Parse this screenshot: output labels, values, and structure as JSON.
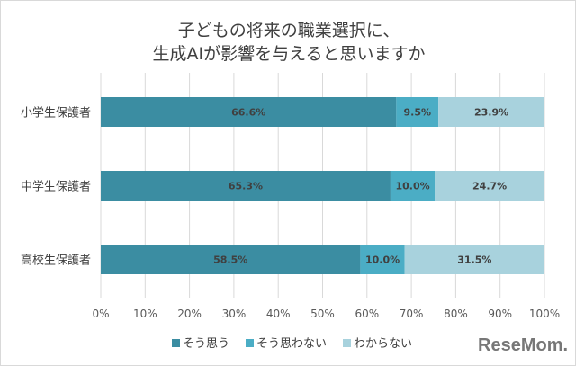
{
  "chart_data": {
    "type": "bar",
    "orientation": "horizontal",
    "stacked": "100%",
    "title": "子どもの将来の職業選択に、\n生成AIが影響を与えると思いますか",
    "title_lines": [
      "子どもの将来の職業選択に、",
      "生成AIが影響を与えると思いますか"
    ],
    "categories": [
      "小学生保護者",
      "中学生保護者",
      "高校生保護者"
    ],
    "series": [
      {
        "name": "そう思う",
        "values": [
          66.6,
          65.3,
          58.5
        ],
        "labels": [
          "66.6%",
          "65.3%",
          "58.5%"
        ],
        "color": "#3b8da2"
      },
      {
        "name": "そう思わない",
        "values": [
          9.5,
          10.0,
          10.0
        ],
        "labels": [
          "9.5%",
          "10.0%",
          "10.0%"
        ],
        "color": "#4badc5"
      },
      {
        "name": "わからない",
        "values": [
          23.9,
          24.7,
          31.5
        ],
        "labels": [
          "23.9%",
          "24.7%",
          "31.5%"
        ],
        "color": "#a8d2dd"
      }
    ],
    "xlim": [
      0,
      100
    ],
    "xticks": [
      "0%",
      "10%",
      "20%",
      "30%",
      "40%",
      "50%",
      "60%",
      "70%",
      "80%",
      "90%",
      "100%"
    ],
    "grid": true,
    "legend_position": "bottom"
  },
  "logo": "ReseMom"
}
